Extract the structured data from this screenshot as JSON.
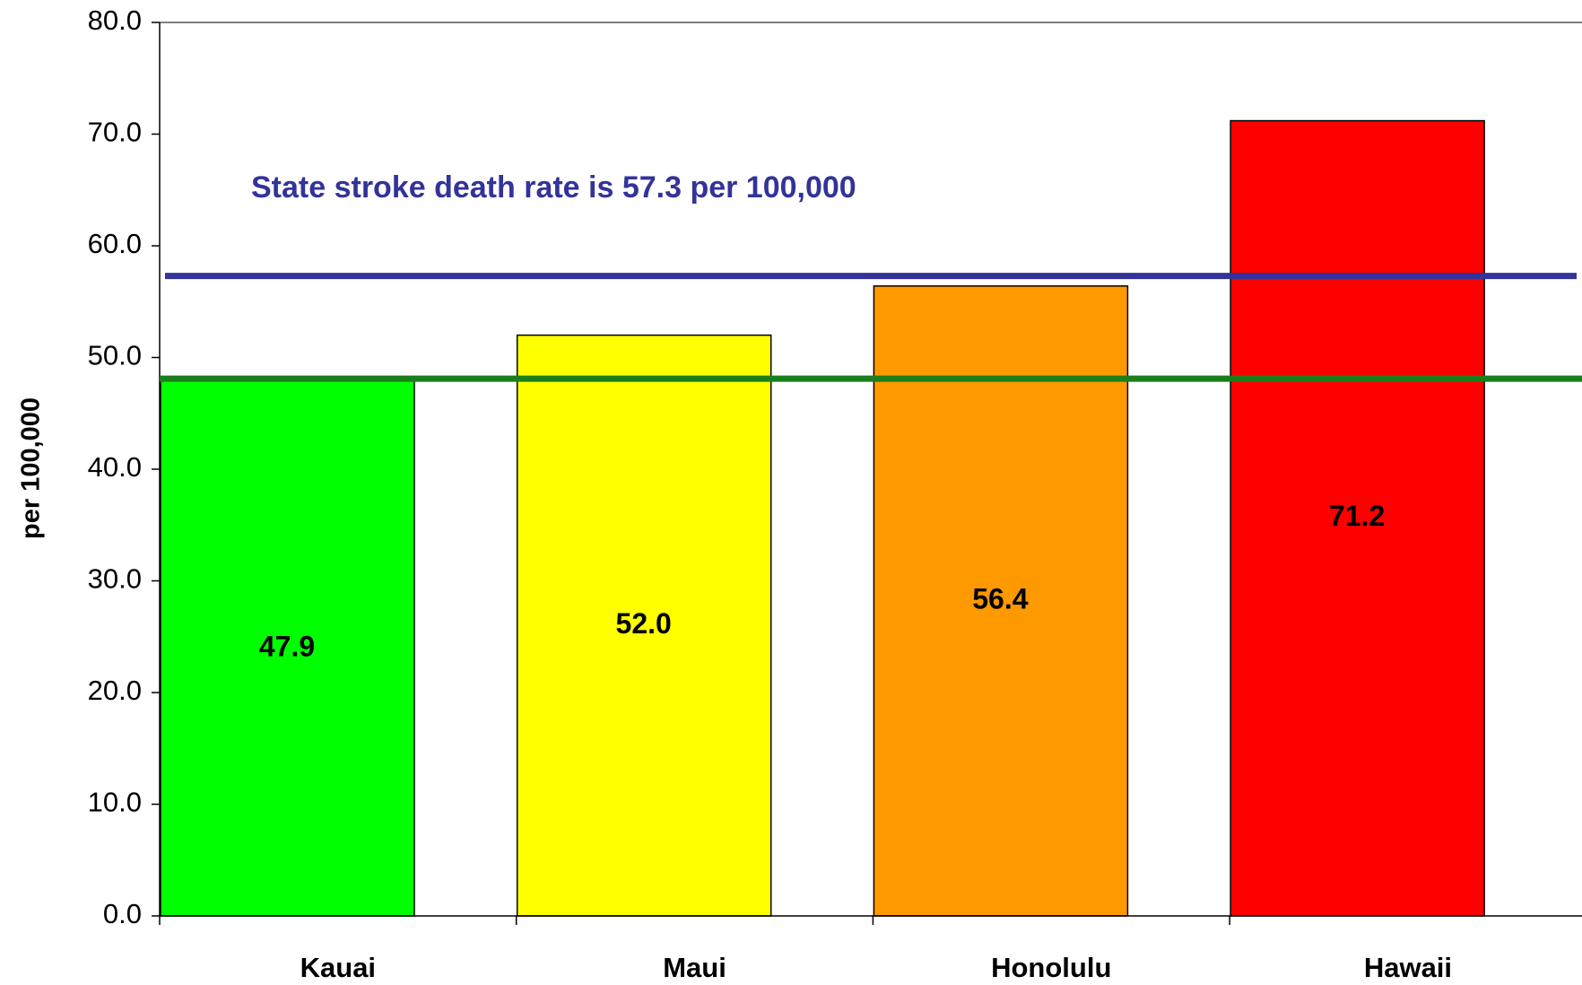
{
  "chart_data": {
    "type": "bar",
    "categories": [
      "Kauai",
      "Maui",
      "Honolulu",
      "Hawaii"
    ],
    "values": [
      47.9,
      52.0,
      56.4,
      71.2
    ],
    "value_labels": [
      "47.9",
      "52.0",
      "56.4",
      "71.2"
    ],
    "colors": [
      "#00ff00",
      "#ffff00",
      "#ff9900",
      "#ff0000"
    ],
    "ylabel": "per 100,000",
    "ylim": [
      0,
      80
    ],
    "yticks": [
      {
        "value": 0,
        "label": "0.0"
      },
      {
        "value": 10,
        "label": "10.0"
      },
      {
        "value": 20,
        "label": "20.0"
      },
      {
        "value": 30,
        "label": "30.0"
      },
      {
        "value": 40,
        "label": "40.0"
      },
      {
        "value": 50,
        "label": "50.0"
      },
      {
        "value": 60,
        "label": "60.0"
      },
      {
        "value": 70,
        "label": "70.0"
      },
      {
        "value": 80,
        "label": "80.0"
      }
    ],
    "reference_lines": [
      {
        "value": 57.3,
        "color": "#333399"
      },
      {
        "value": 48.1,
        "color": "#1a7f1a"
      }
    ],
    "annotation": "State stroke death rate is 57.3 per 100,000",
    "annotation_color": "#333399"
  }
}
